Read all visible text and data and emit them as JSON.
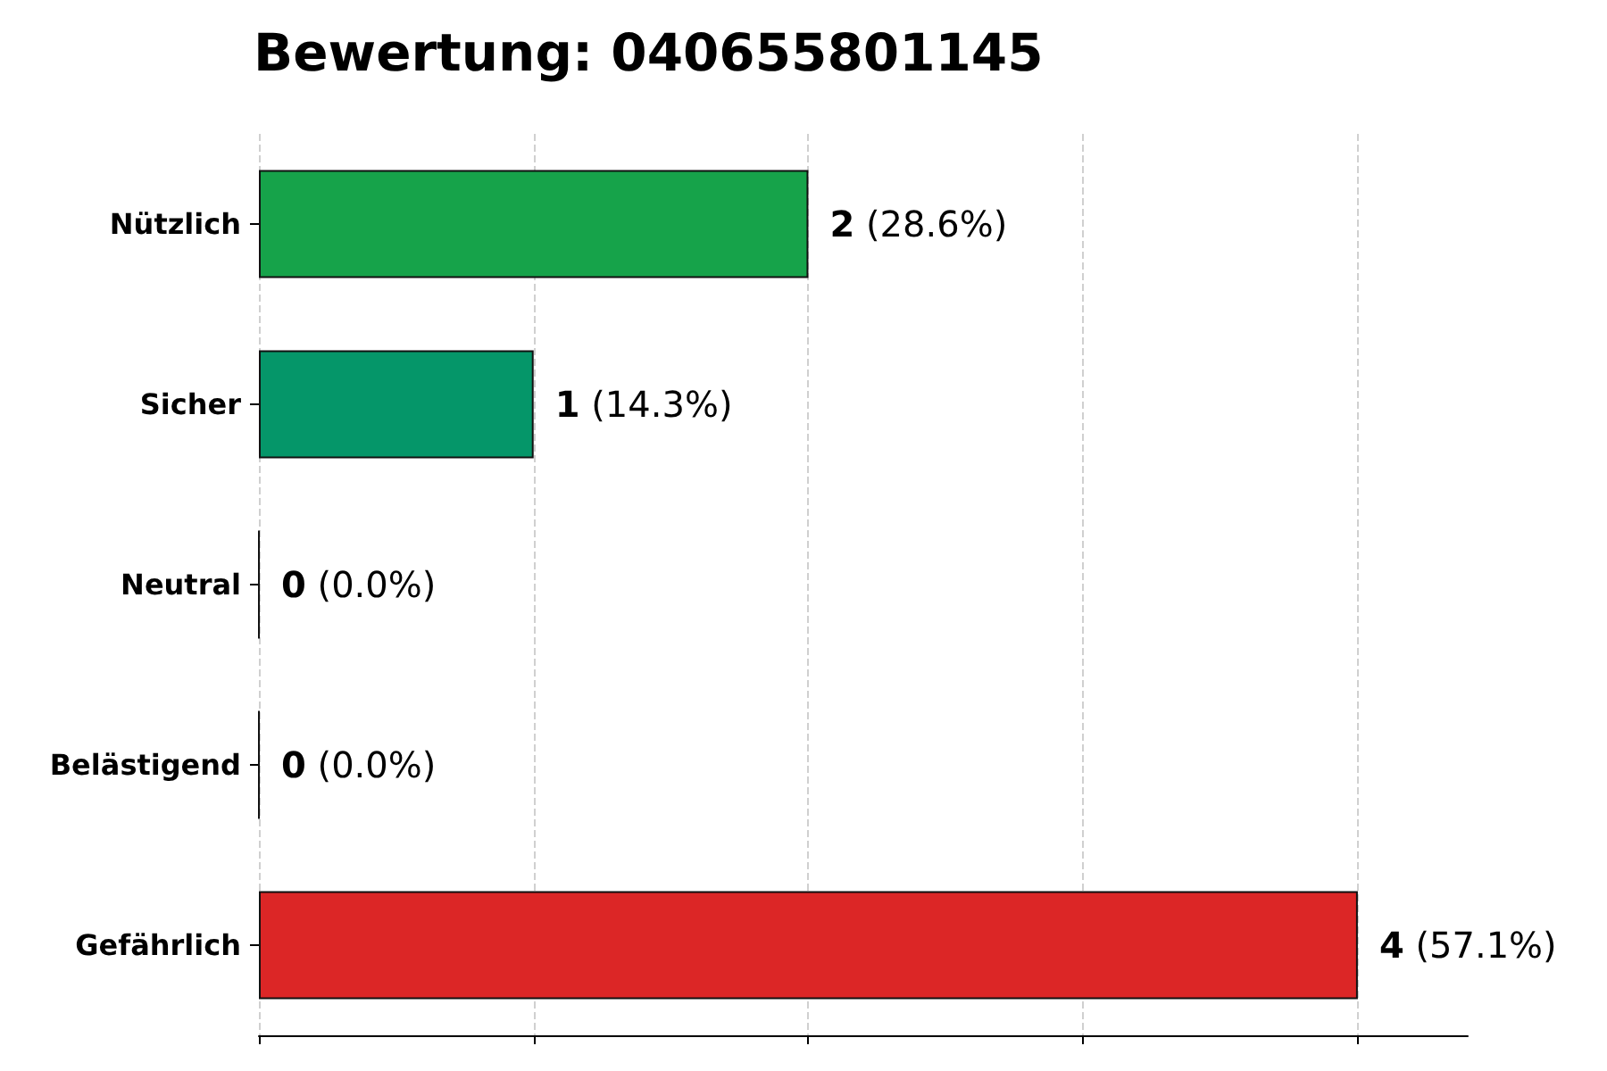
{
  "chart_data": {
    "type": "bar",
    "orientation": "horizontal",
    "title": "Bewertung: 040655801145",
    "categories": [
      "Nützlich",
      "Sicher",
      "Neutral",
      "Belästigend",
      "Gefährlich"
    ],
    "values": [
      2,
      1,
      0,
      0,
      4
    ],
    "colors": [
      "#16a34a",
      "#059669",
      "#111111",
      "#111111",
      "#dc2626"
    ],
    "value_labels": [
      "2 (28.6%)",
      "1 (14.3%)",
      "0 (0.0%)",
      "0 (0.0%)",
      "4 (57.1%)"
    ],
    "xlim": [
      0,
      4.4
    ],
    "xticks": [
      {
        "value": 0,
        "label": null
      },
      {
        "value": 1,
        "label": null
      },
      {
        "value": 2,
        "label": null
      },
      {
        "value": 3,
        "label": null
      },
      {
        "value": 4,
        "label": null
      }
    ],
    "tick_labels": "y",
    "grid": "x"
  }
}
